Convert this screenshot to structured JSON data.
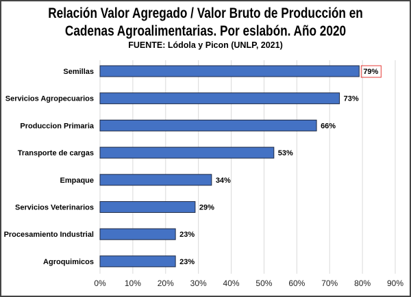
{
  "chart_data": {
    "type": "bar",
    "orientation": "horizontal",
    "title_line1": "Relación Valor Agregado / Valor Bruto de Producción en",
    "title_line2": "Cadenas Agroalimentarias. Por eslabón. Año 2020",
    "subtitle": "FUENTE: Lódola y Picon (UNLP, 2021)",
    "categories": [
      "Semillas",
      "Servicios Agropecuarios",
      "Produccion Primaria",
      "Transporte de cargas",
      "Empaque",
      "Servicios Veterinarios",
      "Procesamiento Industrial",
      "Agroquimicos"
    ],
    "values": [
      79,
      73,
      66,
      53,
      34,
      29,
      23,
      23
    ],
    "data_labels": [
      "79%",
      "73%",
      "66%",
      "53%",
      "34%",
      "29%",
      "23%",
      "23%"
    ],
    "highlighted_label": "79%",
    "xlim": [
      0,
      90
    ],
    "x_ticks": [
      "0%",
      "10%",
      "20%",
      "30%",
      "40%",
      "50%",
      "60%",
      "70%",
      "80%",
      "90%"
    ],
    "grid": "vertical",
    "colors": {
      "bar": "#4472c4",
      "bar_border": "#1f2a44",
      "highlight_box": "#e53935",
      "grid": "#d9d9d9"
    }
  }
}
